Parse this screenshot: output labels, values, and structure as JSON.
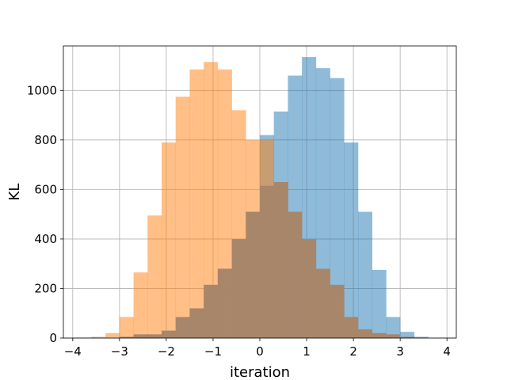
{
  "chart_data": {
    "type": "histogram",
    "title": "",
    "xlabel": "iteration",
    "ylabel": "KL",
    "xlim": [
      -4.2,
      4.2
    ],
    "ylim": [
      0,
      1180
    ],
    "grid": true,
    "xticks": [
      -4,
      -3,
      -2,
      -1,
      0,
      1,
      2,
      3,
      4
    ],
    "yticks": [
      0,
      200,
      400,
      600,
      800,
      1000
    ],
    "series": [
      {
        "color": "#1f77b4",
        "opacity": 0.5,
        "bin_edges": [
          -3.9,
          -3.6,
          -3.3,
          -3.0,
          -2.7,
          -2.4,
          -2.1,
          -1.8,
          -1.5,
          -1.2,
          -0.9,
          -0.6,
          -0.3,
          0.0,
          0.3,
          0.6,
          0.9,
          1.2,
          1.5,
          1.8,
          2.1,
          2.4,
          2.7,
          3.0,
          3.3,
          3.6
        ],
        "values": [
          0,
          0,
          0,
          0,
          0,
          0,
          0,
          0,
          0,
          0,
          0,
          0,
          0,
          820,
          915,
          1060,
          1135,
          1090,
          1050,
          790,
          510,
          275,
          85,
          25,
          5
        ]
      },
      {
        "color": "#ff7f0e",
        "opacity": 0.5,
        "bin_edges": [
          -3.9,
          -3.6,
          -3.3,
          -3.0,
          -2.7,
          -2.4,
          -2.1,
          -1.8,
          -1.5,
          -1.2,
          -0.9,
          -0.6,
          -0.3,
          0.0,
          0.3,
          0.6,
          0.9,
          1.2,
          1.5,
          1.8,
          2.1,
          2.4,
          2.7,
          3.0,
          3.3,
          3.6
        ],
        "values": [
          2,
          5,
          20,
          85,
          265,
          495,
          790,
          975,
          1085,
          1115,
          1085,
          920,
          800,
          800,
          0,
          0,
          0,
          0,
          0,
          0,
          0,
          0,
          0,
          0,
          0
        ]
      },
      {
        "color": "#a8866a",
        "opacity": 1,
        "bin_edges": [
          -3.9,
          -3.6,
          -3.3,
          -3.0,
          -2.7,
          -2.4,
          -2.1,
          -1.8,
          -1.5,
          -1.2,
          -0.9,
          -0.6,
          -0.3,
          0.0,
          0.3,
          0.6,
          0.9,
          1.2,
          1.5,
          1.8,
          2.1,
          2.4,
          2.7,
          3.0,
          3.3,
          3.6
        ],
        "values": [
          0,
          0,
          0,
          5,
          15,
          15,
          30,
          85,
          120,
          215,
          280,
          400,
          510,
          615,
          630,
          510,
          400,
          280,
          215,
          85,
          35,
          20,
          15,
          5,
          0
        ]
      }
    ]
  }
}
